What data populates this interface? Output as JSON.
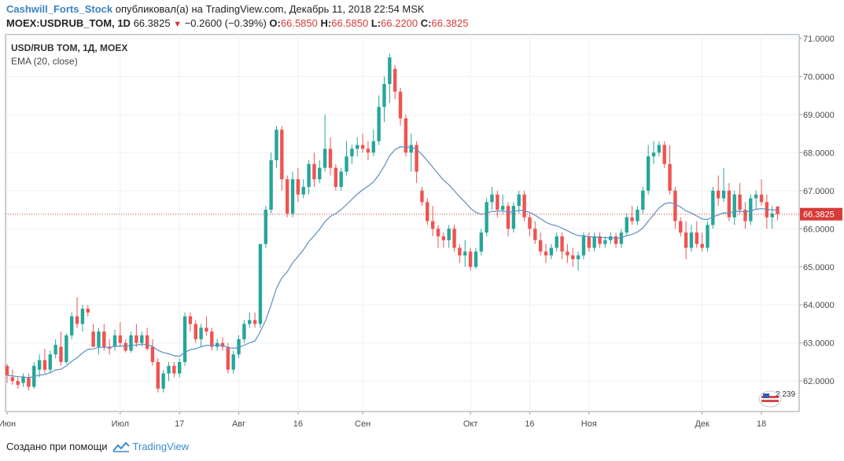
{
  "header": {
    "author": "Cashwill_Forts_Stock",
    "published": "опубликовал(а) на TradingView.com, Декабрь 11, 2018 22:54 MSK",
    "symbol": "MOEX:USDRUB_TOM, 1D",
    "last": "66.3825",
    "change": "−0.2600 (−0.39%)",
    "o_label": "O:",
    "o_value": "66.5850",
    "h_label": "H:",
    "h_value": "66.5850",
    "l_label": "L:",
    "l_value": "66.2200",
    "c_label": "C:",
    "c_value": "66.3825"
  },
  "legend": {
    "title": "USD/RUB TOM, 1Д, MOEX",
    "indicator": "EMA (20, close)"
  },
  "footer": {
    "created_with": "Создано при помощи",
    "brand": "TradingView"
  },
  "badge": {
    "text": "2 239"
  },
  "colors": {
    "up": "#26a69a",
    "down": "#ef5350",
    "ema": "#5b8ec2",
    "price_line": "#d73a37",
    "grid": "#eef0f3"
  },
  "chart_data": {
    "type": "candlestick",
    "y_ticks": [
      "62.0000",
      "63.0000",
      "64.0000",
      "65.0000",
      "66.0000",
      "67.0000",
      "68.0000",
      "69.0000",
      "70.0000",
      "71.0000"
    ],
    "ylim": [
      61.2,
      71.1
    ],
    "last_price_label": "66.3825",
    "last_price": 66.3825,
    "x_labels": [
      {
        "text": "Июн",
        "index": 0
      },
      {
        "text": "Июл",
        "index": 21
      },
      {
        "text": "17",
        "index": 32
      },
      {
        "text": "Авг",
        "index": 43
      },
      {
        "text": "16",
        "index": 54
      },
      {
        "text": "Сен",
        "index": 66
      },
      {
        "text": "Окт",
        "index": 86
      },
      {
        "text": "16",
        "index": 97
      },
      {
        "text": "Ноя",
        "index": 108
      },
      {
        "text": "Дек",
        "index": 129
      },
      {
        "text": "18",
        "index": 140
      }
    ],
    "candles": [
      [
        62.4,
        62.45,
        61.95,
        62.15
      ],
      [
        62.1,
        62.3,
        61.9,
        62.0
      ],
      [
        62.0,
        62.1,
        61.8,
        61.9
      ],
      [
        61.95,
        62.2,
        61.85,
        62.1
      ],
      [
        62.1,
        62.2,
        61.75,
        61.85
      ],
      [
        61.85,
        62.5,
        61.8,
        62.4
      ],
      [
        62.3,
        62.7,
        62.1,
        62.55
      ],
      [
        62.55,
        62.85,
        62.2,
        62.3
      ],
      [
        62.3,
        62.8,
        62.2,
        62.7
      ],
      [
        62.7,
        63.1,
        62.6,
        62.95
      ],
      [
        62.9,
        63.3,
        62.4,
        62.5
      ],
      [
        62.5,
        63.25,
        62.45,
        63.2
      ],
      [
        63.2,
        63.8,
        63.1,
        63.7
      ],
      [
        63.7,
        64.2,
        63.4,
        63.5
      ],
      [
        63.5,
        64.0,
        63.3,
        63.9
      ],
      [
        63.9,
        64.0,
        63.7,
        63.8
      ],
      [
        63.3,
        63.5,
        62.9,
        62.9
      ],
      [
        62.9,
        63.4,
        62.7,
        63.3
      ],
      [
        63.3,
        63.5,
        62.8,
        62.9
      ],
      [
        62.9,
        63.1,
        62.7,
        62.85
      ],
      [
        62.9,
        63.35,
        62.8,
        63.2
      ],
      [
        63.2,
        63.55,
        62.9,
        63.0
      ],
      [
        63.0,
        63.1,
        62.75,
        62.8
      ],
      [
        62.8,
        63.3,
        62.75,
        63.2
      ],
      [
        63.2,
        63.5,
        62.9,
        63.0
      ],
      [
        63.0,
        63.3,
        62.9,
        63.2
      ],
      [
        63.2,
        63.4,
        62.8,
        62.85
      ],
      [
        62.9,
        63.1,
        62.4,
        62.5
      ],
      [
        62.5,
        62.6,
        61.7,
        61.8
      ],
      [
        61.8,
        62.3,
        61.7,
        62.2
      ],
      [
        62.2,
        62.5,
        62.0,
        62.4
      ],
      [
        62.4,
        62.5,
        62.1,
        62.2
      ],
      [
        62.2,
        62.6,
        62.1,
        62.5
      ],
      [
        62.5,
        63.8,
        62.4,
        63.7
      ],
      [
        63.7,
        63.8,
        63.3,
        63.5
      ],
      [
        63.5,
        63.6,
        63.0,
        63.1
      ],
      [
        63.1,
        63.5,
        62.9,
        63.4
      ],
      [
        63.4,
        63.7,
        63.2,
        63.3
      ],
      [
        63.3,
        63.4,
        62.8,
        62.9
      ],
      [
        62.9,
        63.1,
        62.8,
        63.0
      ],
      [
        63.0,
        63.15,
        62.8,
        62.9
      ],
      [
        62.9,
        63.0,
        62.2,
        62.3
      ],
      [
        62.3,
        62.8,
        62.2,
        62.7
      ],
      [
        62.7,
        63.2,
        62.6,
        63.1
      ],
      [
        63.1,
        63.6,
        63.0,
        63.5
      ],
      [
        63.5,
        63.8,
        63.4,
        63.6
      ],
      [
        63.6,
        63.8,
        63.4,
        63.5
      ],
      [
        63.5,
        65.6,
        63.4,
        65.6
      ],
      [
        65.6,
        66.6,
        65.5,
        66.5
      ],
      [
        66.5,
        68.0,
        66.4,
        67.8
      ],
      [
        67.8,
        68.7,
        67.6,
        68.6
      ],
      [
        68.6,
        68.7,
        67.0,
        67.3
      ],
      [
        67.3,
        67.4,
        66.3,
        66.4
      ],
      [
        66.4,
        67.5,
        66.3,
        67.3
      ],
      [
        67.3,
        67.6,
        66.7,
        66.9
      ],
      [
        66.9,
        67.3,
        66.8,
        67.1
      ],
      [
        67.1,
        67.8,
        66.9,
        67.7
      ],
      [
        67.7,
        68.0,
        67.1,
        67.3
      ],
      [
        67.3,
        67.8,
        67.2,
        67.6
      ],
      [
        67.6,
        69.0,
        67.5,
        68.1
      ],
      [
        68.1,
        68.4,
        67.4,
        67.6
      ],
      [
        67.6,
        67.7,
        67.0,
        67.1
      ],
      [
        67.1,
        67.6,
        67.0,
        67.5
      ],
      [
        67.5,
        68.3,
        67.4,
        67.9
      ],
      [
        67.9,
        68.2,
        67.7,
        68.1
      ],
      [
        68.1,
        68.4,
        67.9,
        68.2
      ],
      [
        68.2,
        68.5,
        68.0,
        68.1
      ],
      [
        68.1,
        68.3,
        67.8,
        68.0
      ],
      [
        68.0,
        68.6,
        67.9,
        68.3
      ],
      [
        68.3,
        69.5,
        68.2,
        69.2
      ],
      [
        69.2,
        70.0,
        68.8,
        69.8
      ],
      [
        69.8,
        70.6,
        69.3,
        70.5
      ],
      [
        70.2,
        70.3,
        69.4,
        69.6
      ],
      [
        69.6,
        69.7,
        68.7,
        68.9
      ],
      [
        68.9,
        69.0,
        67.9,
        68.0
      ],
      [
        68.0,
        68.5,
        67.5,
        68.2
      ],
      [
        68.2,
        68.3,
        67.2,
        67.5
      ],
      [
        67.0,
        67.1,
        66.6,
        66.7
      ],
      [
        66.7,
        66.8,
        66.1,
        66.2
      ],
      [
        66.2,
        66.6,
        65.8,
        66.0
      ],
      [
        66.0,
        66.1,
        65.5,
        65.8
      ],
      [
        65.8,
        65.9,
        65.5,
        65.7
      ],
      [
        65.7,
        66.1,
        65.5,
        66.0
      ],
      [
        66.0,
        66.1,
        65.4,
        65.5
      ],
      [
        65.5,
        65.6,
        65.1,
        65.3
      ],
      [
        65.3,
        65.7,
        65.0,
        65.4
      ],
      [
        65.4,
        65.5,
        64.9,
        65.0
      ],
      [
        65.0,
        65.5,
        64.95,
        65.4
      ],
      [
        65.4,
        66.0,
        65.3,
        65.9
      ],
      [
        65.9,
        66.8,
        65.8,
        66.7
      ],
      [
        66.7,
        67.1,
        66.5,
        66.9
      ],
      [
        66.9,
        67.0,
        66.3,
        66.5
      ],
      [
        66.5,
        66.9,
        66.4,
        66.6
      ],
      [
        66.6,
        66.7,
        65.8,
        66.0
      ],
      [
        66.0,
        66.7,
        65.9,
        66.6
      ],
      [
        66.6,
        67.0,
        66.4,
        66.9
      ],
      [
        66.9,
        67.0,
        66.2,
        66.3
      ],
      [
        66.3,
        66.4,
        65.8,
        66.0
      ],
      [
        66.0,
        66.2,
        65.6,
        65.7
      ],
      [
        65.7,
        65.9,
        65.3,
        65.4
      ],
      [
        65.4,
        65.6,
        65.1,
        65.3
      ],
      [
        65.3,
        65.6,
        65.2,
        65.5
      ],
      [
        65.5,
        65.9,
        65.4,
        65.8
      ],
      [
        65.8,
        65.9,
        65.2,
        65.4
      ],
      [
        65.4,
        65.6,
        65.1,
        65.3
      ],
      [
        65.3,
        65.5,
        65.0,
        65.2
      ],
      [
        65.2,
        65.4,
        64.9,
        65.3
      ],
      [
        65.3,
        65.9,
        65.2,
        65.8
      ],
      [
        65.8,
        65.9,
        65.4,
        65.5
      ],
      [
        65.5,
        65.9,
        65.4,
        65.8
      ],
      [
        65.8,
        65.9,
        65.5,
        65.6
      ],
      [
        65.6,
        65.8,
        65.5,
        65.7
      ],
      [
        65.7,
        65.9,
        65.6,
        65.8
      ],
      [
        65.8,
        65.9,
        65.5,
        65.6
      ],
      [
        65.6,
        66.0,
        65.5,
        65.9
      ],
      [
        65.9,
        66.4,
        65.8,
        66.3
      ],
      [
        66.3,
        66.6,
        66.1,
        66.2
      ],
      [
        66.2,
        66.6,
        66.1,
        66.5
      ],
      [
        66.5,
        67.1,
        66.4,
        67.0
      ],
      [
        67.0,
        68.2,
        66.9,
        67.9
      ],
      [
        67.9,
        68.3,
        67.7,
        68.0
      ],
      [
        68.0,
        68.3,
        67.9,
        68.2
      ],
      [
        68.2,
        68.3,
        67.6,
        67.7
      ],
      [
        67.7,
        68.2,
        66.9,
        67.0
      ],
      [
        67.0,
        67.1,
        66.0,
        66.2
      ],
      [
        66.2,
        66.3,
        65.8,
        65.9
      ],
      [
        65.9,
        66.2,
        65.2,
        65.5
      ],
      [
        65.5,
        66.1,
        65.4,
        65.9
      ],
      [
        65.9,
        66.2,
        65.5,
        65.6
      ],
      [
        65.6,
        65.9,
        65.4,
        65.5
      ],
      [
        65.5,
        66.2,
        65.4,
        66.1
      ],
      [
        66.1,
        67.1,
        66.0,
        67.0
      ],
      [
        67.0,
        67.4,
        66.6,
        66.8
      ],
      [
        66.8,
        67.6,
        66.7,
        67.0
      ],
      [
        67.0,
        67.2,
        66.2,
        66.3
      ],
      [
        66.3,
        67.0,
        66.1,
        66.9
      ],
      [
        66.9,
        67.2,
        66.4,
        66.5
      ],
      [
        66.5,
        66.7,
        66.0,
        66.2
      ],
      [
        66.2,
        66.9,
        66.1,
        66.8
      ],
      [
        66.8,
        67.0,
        66.5,
        66.9
      ],
      [
        66.9,
        67.3,
        66.6,
        66.7
      ],
      [
        66.7,
        66.9,
        66.0,
        66.3
      ],
      [
        66.3,
        66.6,
        66.0,
        66.4
      ],
      [
        66.585,
        66.585,
        66.22,
        66.3825
      ]
    ]
  }
}
